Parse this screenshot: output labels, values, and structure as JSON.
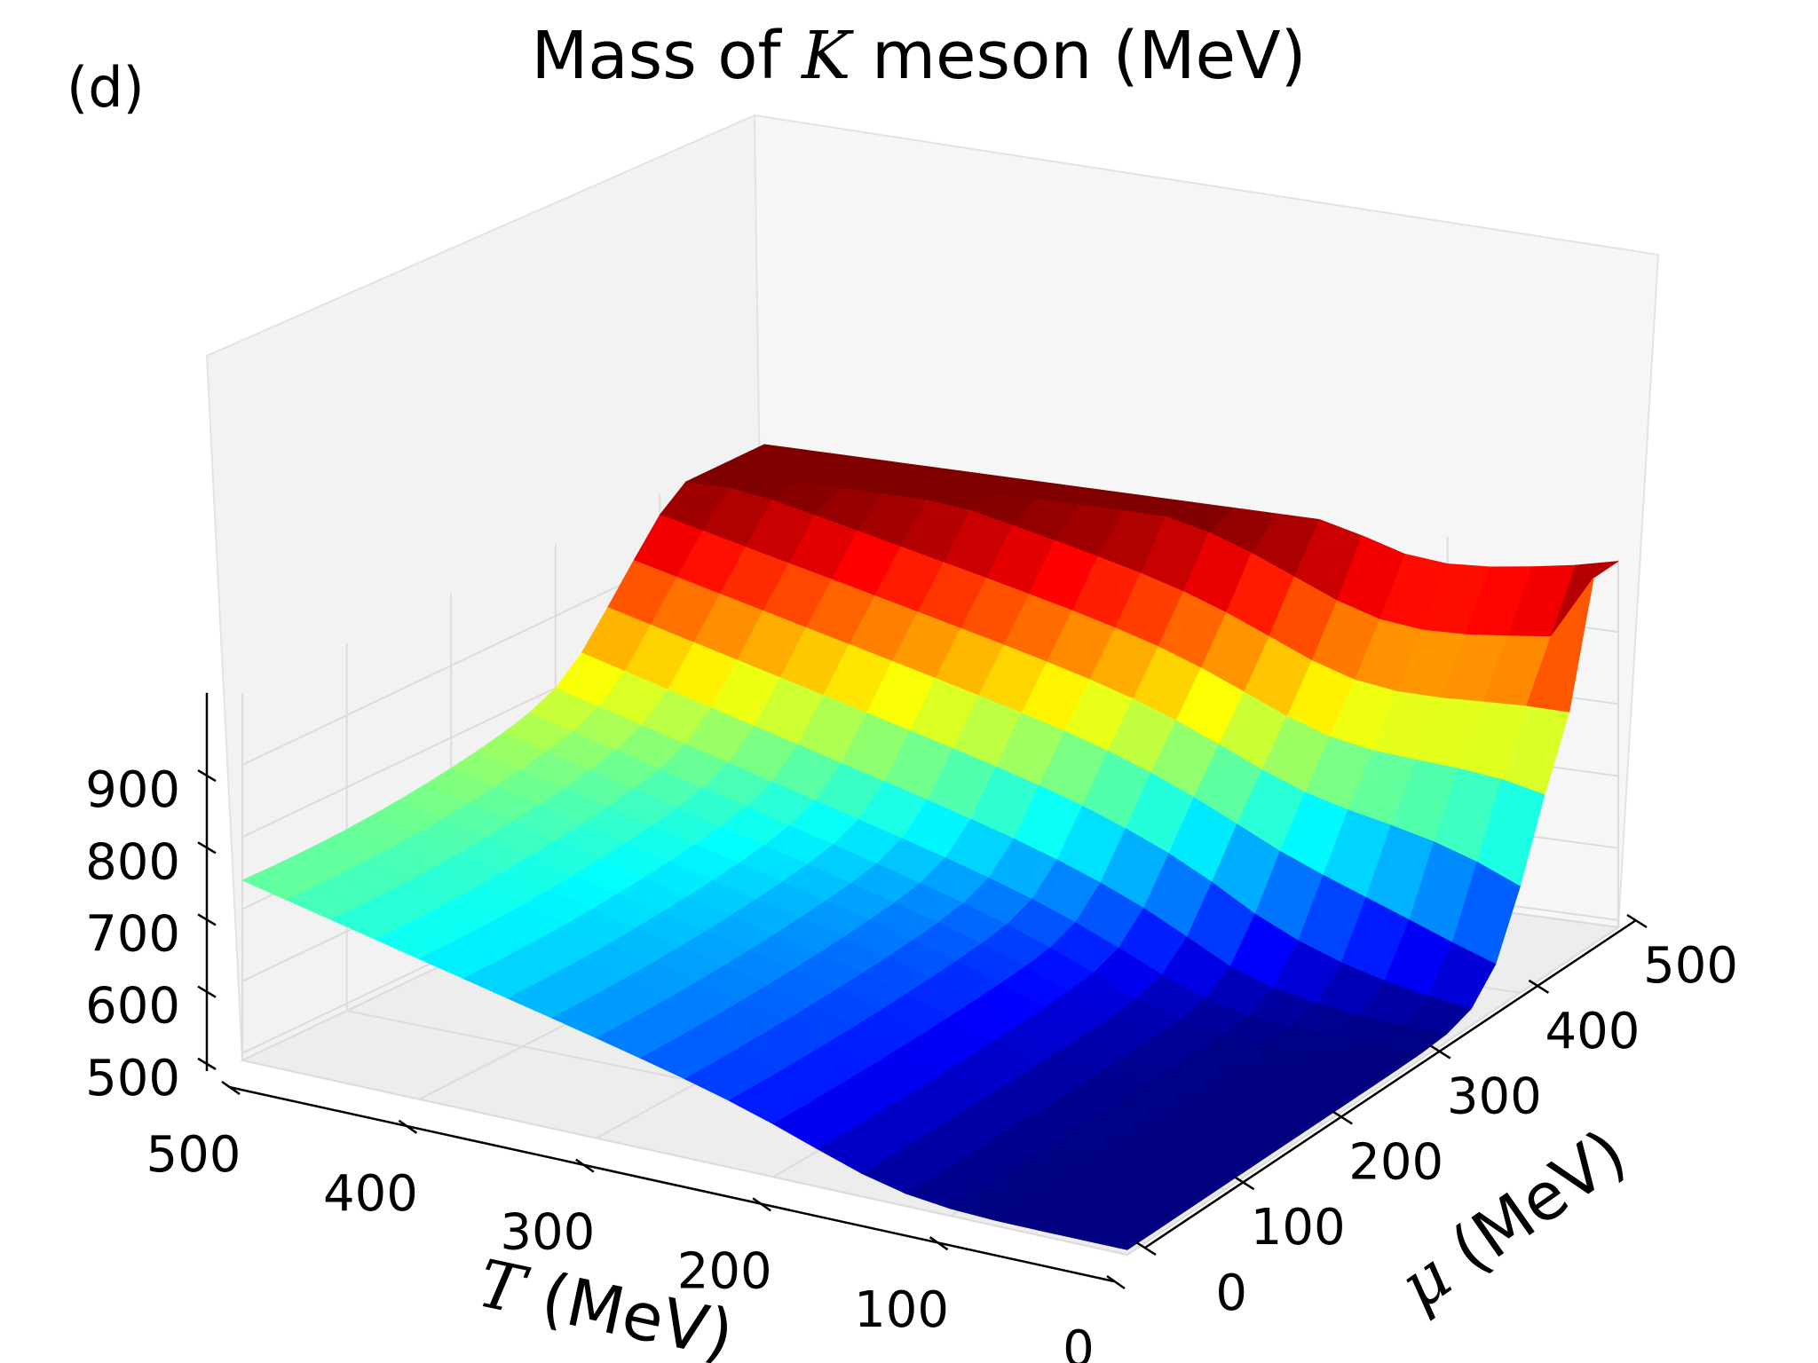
{
  "panel_label": "(d)",
  "chart_data": {
    "type": "surface3d",
    "title_prefix": "Mass of ",
    "title_symbol": "K",
    "title_suffix": " meson (MeV)",
    "x_symbol": "T",
    "x_unit": " (MeV)",
    "y_symbol": "μ",
    "y_unit": " (MeV)",
    "x_ticks": [
      "0",
      "100",
      "200",
      "300",
      "400",
      "500"
    ],
    "y_ticks": [
      "0",
      "100",
      "200",
      "300",
      "400",
      "500"
    ],
    "z_ticks": [
      "500",
      "600",
      "700",
      "800",
      "900"
    ],
    "x_range": [
      0,
      500
    ],
    "y_range": [
      0,
      500
    ],
    "z_range": [
      490,
      1000
    ],
    "colormap": "jet",
    "grid": true,
    "surface": {
      "T": [
        0,
        25,
        50,
        75,
        100,
        125,
        150,
        175,
        200,
        225,
        250,
        275,
        300,
        325,
        350,
        375,
        400,
        425,
        450,
        475,
        500
      ],
      "mu": [
        0,
        25,
        50,
        75,
        100,
        125,
        150,
        175,
        200,
        225,
        250,
        275,
        300,
        325,
        350,
        375,
        400,
        425,
        450,
        475,
        500
      ],
      "mass_at_T500_mu0": 740,
      "mass_at_T500_mu500": 930,
      "mass_at_T0_mu0": 497,
      "mass_at_T0_mu500": 998
    }
  }
}
